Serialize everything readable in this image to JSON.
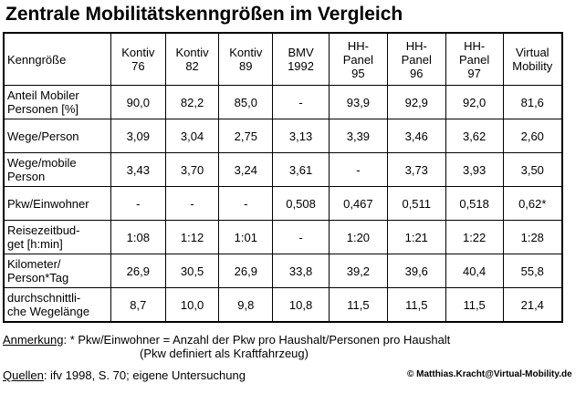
{
  "title": "Zentrale Mobilitätskenngrößen im Vergleich",
  "table": {
    "header": [
      "Kenngröße",
      "Kontiv\n76",
      "Kontiv\n82",
      "Kontiv\n89",
      "BMV\n1992",
      "HH-\nPanel\n95",
      "HH-\nPanel\n96",
      "HH-\nPanel\n97",
      "Virtual\nMobility"
    ],
    "rows": [
      {
        "label": "Anteil Mobiler\nPersonen [%]",
        "values": [
          "90,0",
          "82,2",
          "85,0",
          "-",
          "93,9",
          "92,9",
          "92,0",
          "81,6"
        ]
      },
      {
        "label": "Wege/Person",
        "values": [
          "3,09",
          "3,04",
          "2,75",
          "3,13",
          "3,39",
          "3,46",
          "3,62",
          "2,60"
        ]
      },
      {
        "label": "Wege/mobile\nPerson",
        "values": [
          "3,43",
          "3,70",
          "3,24",
          "3,61",
          "-",
          "3,73",
          "3,93",
          "3,50"
        ]
      },
      {
        "label": "Pkw/Einwohner",
        "values": [
          "-",
          "-",
          "-",
          "0,508",
          "0,467",
          "0,511",
          "0,518",
          "0,62*"
        ]
      },
      {
        "label": "Reisezeitbud-\nget [h:min]",
        "values": [
          "1:08",
          "1:12",
          "1:01",
          "-",
          "1:20",
          "1:21",
          "1:22",
          "1:28"
        ]
      },
      {
        "label": "Kilometer/\nPerson*Tag",
        "values": [
          "26,9",
          "30,5",
          "26,9",
          "33,8",
          "39,2",
          "39,6",
          "40,4",
          "55,8"
        ]
      },
      {
        "label": "durchschnittli-\nche Wegelänge",
        "values": [
          "8,7",
          "10,0",
          "9,8",
          "10,8",
          "11,5",
          "11,5",
          "11,5",
          "21,4"
        ]
      }
    ]
  },
  "notes": {
    "remark_label": "Anmerkung",
    "remark_text": ": * Pkw/Einwohner  =  Anzahl  der  Pkw  pro  Haushalt/Personen  pro  Haushalt",
    "remark_text2": "(Pkw definiert als Kraftfahrzeug)",
    "sources_label": "Quellen",
    "sources_text": ": ifv 1998, S. 70; eigene Untersuchung",
    "copyright": "© Matthias.Kracht@Virtual-Mobility.de"
  }
}
